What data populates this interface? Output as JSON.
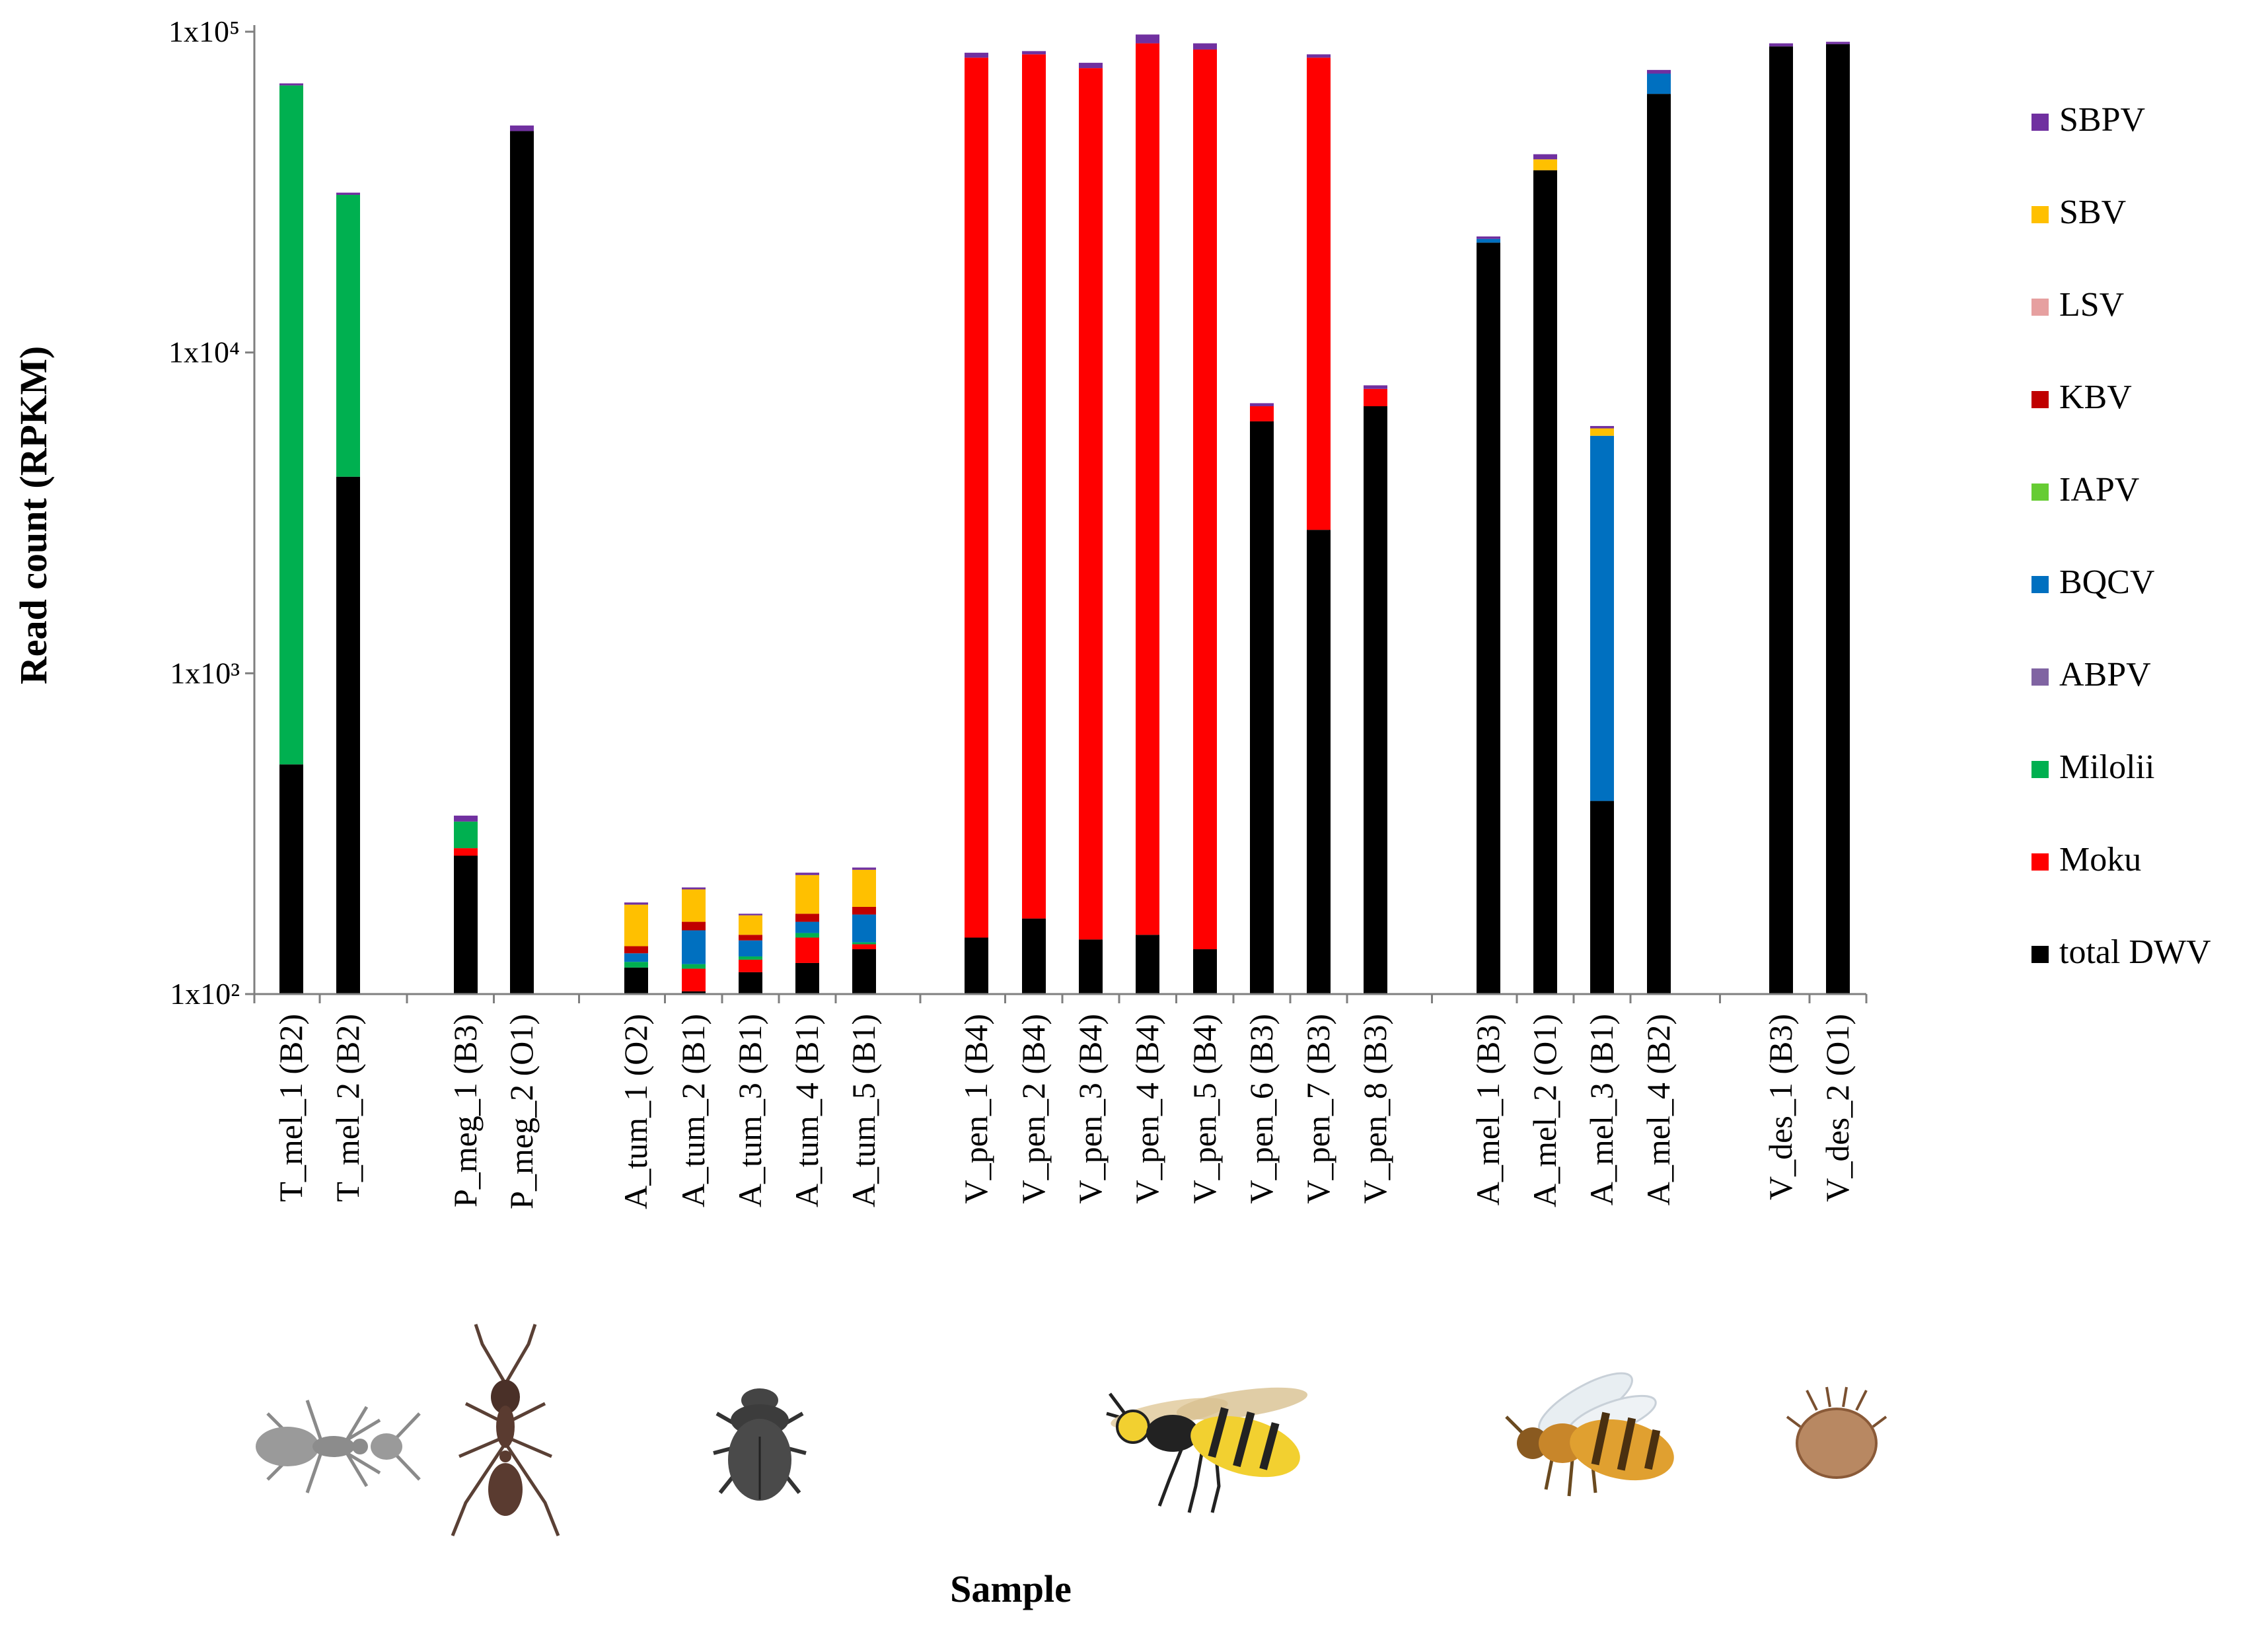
{
  "chart_data": {
    "type": "bar",
    "stacked": true,
    "yscale": "log",
    "title": "",
    "xlabel": "Sample",
    "ylabel": "Read count (RPKM)",
    "ylim": [
      100,
      100000
    ],
    "yticks": [
      {
        "value": 100,
        "label": "1x10²"
      },
      {
        "value": 1000,
        "label": "1x10³"
      },
      {
        "value": 10000,
        "label": "1x10⁴"
      },
      {
        "value": 100000,
        "label": "1x10⁵"
      }
    ],
    "grid": false,
    "legend_position": "right",
    "series": [
      {
        "name": "total DWV",
        "color": "#000000"
      },
      {
        "name": "Moku",
        "color": "#ff0000"
      },
      {
        "name": "Milolii",
        "color": "#00b050"
      },
      {
        "name": "ABPV",
        "color": "#8064a2"
      },
      {
        "name": "BQCV",
        "color": "#0070c0"
      },
      {
        "name": "IAPV",
        "color": "#66cc33"
      },
      {
        "name": "KBV",
        "color": "#c00000"
      },
      {
        "name": "LSV",
        "color": "#e6a0a0"
      },
      {
        "name": "SBV",
        "color": "#ffc000"
      },
      {
        "name": "SBPV",
        "color": "#7030a0"
      }
    ],
    "legend_order": [
      "SBPV",
      "SBV",
      "LSV",
      "KBV",
      "IAPV",
      "BQCV",
      "ABPV",
      "Milolii",
      "Moku",
      "total DWV"
    ],
    "groups": [
      {
        "name": "T_mel",
        "icon": "ant-grey-icon",
        "samples": [
          {
            "label": "T_mel_1 (B2)",
            "stack": [
              {
                "series": "total DWV",
                "top": 520
              },
              {
                "series": "Milolii",
                "top": 68000
              },
              {
                "series": "SBPV",
                "top": 69000
              }
            ]
          },
          {
            "label": "T_mel_2 (B2)",
            "stack": [
              {
                "series": "total DWV",
                "top": 4100
              },
              {
                "series": "Milolii",
                "top": 31000
              },
              {
                "series": "SBPV",
                "top": 31500
              }
            ]
          }
        ]
      },
      {
        "name": "P_meg",
        "icon": "ant-brown-icon",
        "samples": [
          {
            "label": "P_meg_1 (B3)",
            "stack": [
              {
                "series": "total DWV",
                "top": 270
              },
              {
                "series": "Moku",
                "top": 285
              },
              {
                "series": "Milolii",
                "top": 345
              },
              {
                "series": "SBPV",
                "top": 360
              }
            ]
          },
          {
            "label": "P_meg_2 (O1)",
            "stack": [
              {
                "series": "total DWV",
                "top": 49000
              },
              {
                "series": "SBPV",
                "top": 51000
              }
            ]
          }
        ]
      },
      {
        "name": "A_tum",
        "icon": "beetle-icon",
        "samples": [
          {
            "label": "A_tum_1 (O2)",
            "stack": [
              {
                "series": "total DWV",
                "top": 121
              },
              {
                "series": "Milolii",
                "top": 126
              },
              {
                "series": "BQCV",
                "top": 134
              },
              {
                "series": "KBV",
                "top": 141
              },
              {
                "series": "SBV",
                "top": 190
              },
              {
                "series": "SBPV",
                "top": 193
              }
            ]
          },
          {
            "label": "A_tum_2 (B1)",
            "stack": [
              {
                "series": "total DWV",
                "top": 102
              },
              {
                "series": "Moku",
                "top": 120
              },
              {
                "series": "Milolii",
                "top": 124
              },
              {
                "series": "BQCV",
                "top": 158
              },
              {
                "series": "KBV",
                "top": 168
              },
              {
                "series": "SBV",
                "top": 212
              },
              {
                "series": "SBPV",
                "top": 215
              }
            ]
          },
          {
            "label": "A_tum_3 (B1)",
            "stack": [
              {
                "series": "total DWV",
                "top": 117
              },
              {
                "series": "Moku",
                "top": 128
              },
              {
                "series": "Milolii",
                "top": 131
              },
              {
                "series": "BQCV",
                "top": 147
              },
              {
                "series": "KBV",
                "top": 153
              },
              {
                "series": "SBV",
                "top": 176
              },
              {
                "series": "SBPV",
                "top": 178
              }
            ]
          },
          {
            "label": "A_tum_4 (B1)",
            "stack": [
              {
                "series": "total DWV",
                "top": 125
              },
              {
                "series": "Moku",
                "top": 150
              },
              {
                "series": "Milolii",
                "top": 155
              },
              {
                "series": "BQCV",
                "top": 168
              },
              {
                "series": "KBV",
                "top": 178
              },
              {
                "series": "SBV",
                "top": 235
              },
              {
                "series": "SBPV",
                "top": 239
              }
            ]
          },
          {
            "label": "A_tum_5 (B1)",
            "stack": [
              {
                "series": "total DWV",
                "top": 138
              },
              {
                "series": "Moku",
                "top": 143
              },
              {
                "series": "Milolii",
                "top": 145
              },
              {
                "series": "BQCV",
                "top": 177
              },
              {
                "series": "KBV",
                "top": 187
              },
              {
                "series": "SBV",
                "top": 244
              },
              {
                "series": "SBPV",
                "top": 248
              }
            ]
          }
        ]
      },
      {
        "name": "V_pen",
        "icon": "wasp-icon",
        "samples": [
          {
            "label": "V_pen_1 (B4)",
            "stack": [
              {
                "series": "total DWV",
                "top": 150
              },
              {
                "series": "Moku",
                "top": 83000
              },
              {
                "series": "SBPV",
                "top": 86000
              }
            ]
          },
          {
            "label": "V_pen_2 (B4)",
            "stack": [
              {
                "series": "total DWV",
                "top": 172
              },
              {
                "series": "Moku",
                "top": 85000
              },
              {
                "series": "SBPV",
                "top": 87000
              }
            ]
          },
          {
            "label": "V_pen_3 (B4)",
            "stack": [
              {
                "series": "total DWV",
                "top": 148
              },
              {
                "series": "Moku",
                "top": 77000
              },
              {
                "series": "SBPV",
                "top": 80000
              }
            ]
          },
          {
            "label": "V_pen_4 (B4)",
            "stack": [
              {
                "series": "total DWV",
                "top": 153
              },
              {
                "series": "Moku",
                "top": 92000
              },
              {
                "series": "SBPV",
                "top": 98000
              }
            ]
          },
          {
            "label": "V_pen_5 (B4)",
            "stack": [
              {
                "series": "total DWV",
                "top": 138
              },
              {
                "series": "Moku",
                "top": 88000
              },
              {
                "series": "SBPV",
                "top": 92000
              }
            ]
          },
          {
            "label": "V_pen_6 (B3)",
            "stack": [
              {
                "series": "total DWV",
                "top": 6100
              },
              {
                "series": "Moku",
                "top": 6800
              },
              {
                "series": "SBPV",
                "top": 6950
              }
            ]
          },
          {
            "label": "V_pen_7 (B3)",
            "stack": [
              {
                "series": "total DWV",
                "top": 2800
              },
              {
                "series": "Moku",
                "top": 83000
              },
              {
                "series": "SBPV",
                "top": 85000
              }
            ]
          },
          {
            "label": "V_pen_8 (B3)",
            "stack": [
              {
                "series": "total DWV",
                "top": 6800
              },
              {
                "series": "Moku",
                "top": 7700
              },
              {
                "series": "SBPV",
                "top": 7900
              }
            ]
          }
        ]
      },
      {
        "name": "A_mel",
        "icon": "honeybee-icon",
        "samples": [
          {
            "label": "A_mel_1 (B3)",
            "stack": [
              {
                "series": "total DWV",
                "top": 22000
              },
              {
                "series": "BQCV",
                "top": 22600
              },
              {
                "series": "SBPV",
                "top": 23000
              }
            ]
          },
          {
            "label": "A_mel_2 (O1)",
            "stack": [
              {
                "series": "total DWV",
                "top": 37000
              },
              {
                "series": "SBV",
                "top": 40000
              },
              {
                "series": "SBPV",
                "top": 41500
              }
            ]
          },
          {
            "label": "A_mel_3 (B1)",
            "stack": [
              {
                "series": "total DWV",
                "top": 400
              },
              {
                "series": "BQCV",
                "top": 5500
              },
              {
                "series": "SBV",
                "top": 5800
              },
              {
                "series": "SBPV",
                "top": 5900
              }
            ]
          },
          {
            "label": "A_mel_4 (B2)",
            "stack": [
              {
                "series": "total DWV",
                "top": 64000
              },
              {
                "series": "BQCV",
                "top": 74000
              },
              {
                "series": "SBPV",
                "top": 76000
              }
            ]
          }
        ]
      },
      {
        "name": "V_des",
        "icon": "mite-icon",
        "samples": [
          {
            "label": "V_des_1 (B3)",
            "stack": [
              {
                "series": "total DWV",
                "top": 90000
              },
              {
                "series": "SBPV",
                "top": 92000
              }
            ]
          },
          {
            "label": "V_des_2 (O1)",
            "stack": [
              {
                "series": "total DWV",
                "top": 91500
              },
              {
                "series": "SBPV",
                "top": 93000
              }
            ]
          }
        ]
      }
    ]
  }
}
